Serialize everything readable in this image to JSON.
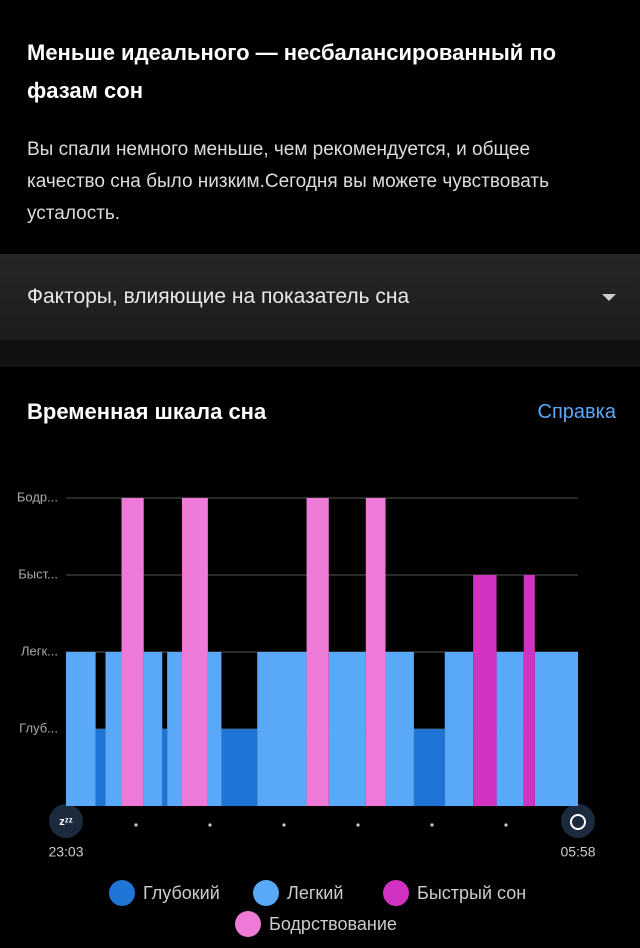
{
  "header": {
    "title": "Меньше идеального — несбалансированный по фазам сон",
    "text": "Вы спали немного меньше, чем рекомендуется, и общее качество сна было низким.Сегодня вы можете чувствовать усталость."
  },
  "factors": {
    "label": "Факторы, влияющие на показатель сна"
  },
  "section": {
    "title": "Временная шкала сна",
    "link": "Справка"
  },
  "chart_data": {
    "type": "timeline",
    "categories": [
      "Глуб...",
      "Легк...",
      "Быст...",
      "Бодр..."
    ],
    "x_labels": [
      "23:03",
      "05:58"
    ],
    "xlim": [
      0,
      415
    ],
    "grid": true,
    "series": [
      {
        "name": "Глубокий",
        "color": "#1f74d6",
        "segments": [
          [
            24,
            32
          ],
          [
            78,
            82
          ],
          [
            126,
            155
          ],
          [
            282,
            307
          ]
        ]
      },
      {
        "name": "Легкий",
        "color": "#5aa8f8",
        "segments": [
          [
            0,
            24
          ],
          [
            32,
            45
          ],
          [
            63,
            78
          ],
          [
            82,
            94
          ],
          [
            115,
            126
          ],
          [
            155,
            195
          ],
          [
            213,
            243
          ],
          [
            259,
            282
          ],
          [
            307,
            330
          ],
          [
            349,
            371
          ],
          [
            380,
            415
          ]
        ]
      },
      {
        "name": "Быстрый сон",
        "color": "#d232c2",
        "segments": [
          [
            330,
            349
          ],
          [
            371,
            380
          ]
        ]
      },
      {
        "name": "Бодрствование",
        "color": "#ee7ad8",
        "segments": [
          [
            45,
            63
          ],
          [
            94,
            115
          ],
          [
            195,
            213
          ],
          [
            243,
            259
          ]
        ]
      }
    ]
  }
}
